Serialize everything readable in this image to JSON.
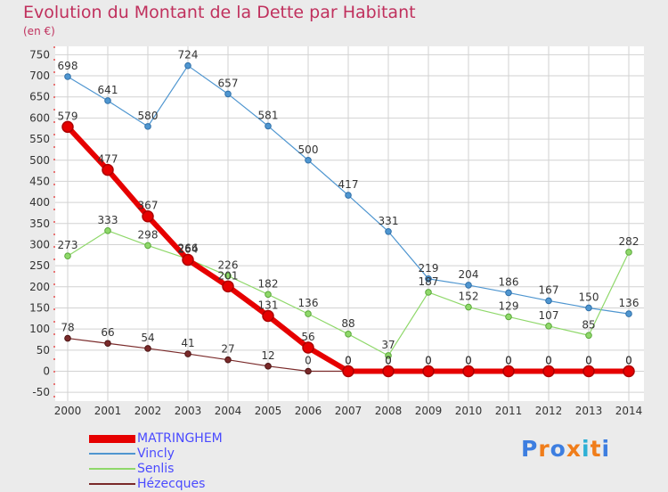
{
  "title": "Evolution du Montant de la Dette par Habitant",
  "unit": "(en €)",
  "brand": "Proxiti",
  "colors": {
    "background": "#ebebeb",
    "plot_background": "#ffffff",
    "grid": "#d2d2d2",
    "title": "#c0305d",
    "legend_text": "#4a4aff",
    "brand_letters": [
      "#3d7ee0",
      "#f07d1a",
      "#3d7ee0",
      "#f07d1a",
      "#2fb0d5",
      "#f07d1a",
      "#3d7ee0"
    ]
  },
  "chart_data": {
    "type": "line",
    "x": [
      2000,
      2001,
      2002,
      2003,
      2004,
      2005,
      2006,
      2007,
      2008,
      2009,
      2010,
      2011,
      2012,
      2013,
      2014
    ],
    "yticks": [
      -50,
      0,
      50,
      100,
      150,
      200,
      250,
      300,
      350,
      400,
      450,
      500,
      550,
      600,
      650,
      700,
      750
    ],
    "ylim": [
      -50,
      750
    ],
    "grid": true,
    "legend_position": "bottom-left",
    "series": [
      {
        "name": "MATRINGHEM",
        "color": "#e60000",
        "values": [
          579,
          477,
          367,
          264,
          201,
          131,
          56,
          0,
          0,
          0,
          0,
          0,
          0,
          0,
          0
        ]
      },
      {
        "name": "Vincly",
        "color": "#4f96d0",
        "values": [
          698,
          641,
          580,
          724,
          657,
          581,
          500,
          417,
          331,
          219,
          204,
          186,
          167,
          150,
          136
        ]
      },
      {
        "name": "Senlis",
        "color": "#8fd86a",
        "values": [
          273,
          333,
          298,
          266,
          226,
          182,
          136,
          88,
          37,
          187,
          152,
          129,
          107,
          85,
          282
        ]
      },
      {
        "name": "Hézecques",
        "color": "#7a2a2a",
        "values": [
          78,
          66,
          54,
          41,
          27,
          12,
          0,
          0,
          0,
          0,
          0,
          0,
          0,
          0,
          0
        ]
      }
    ]
  }
}
